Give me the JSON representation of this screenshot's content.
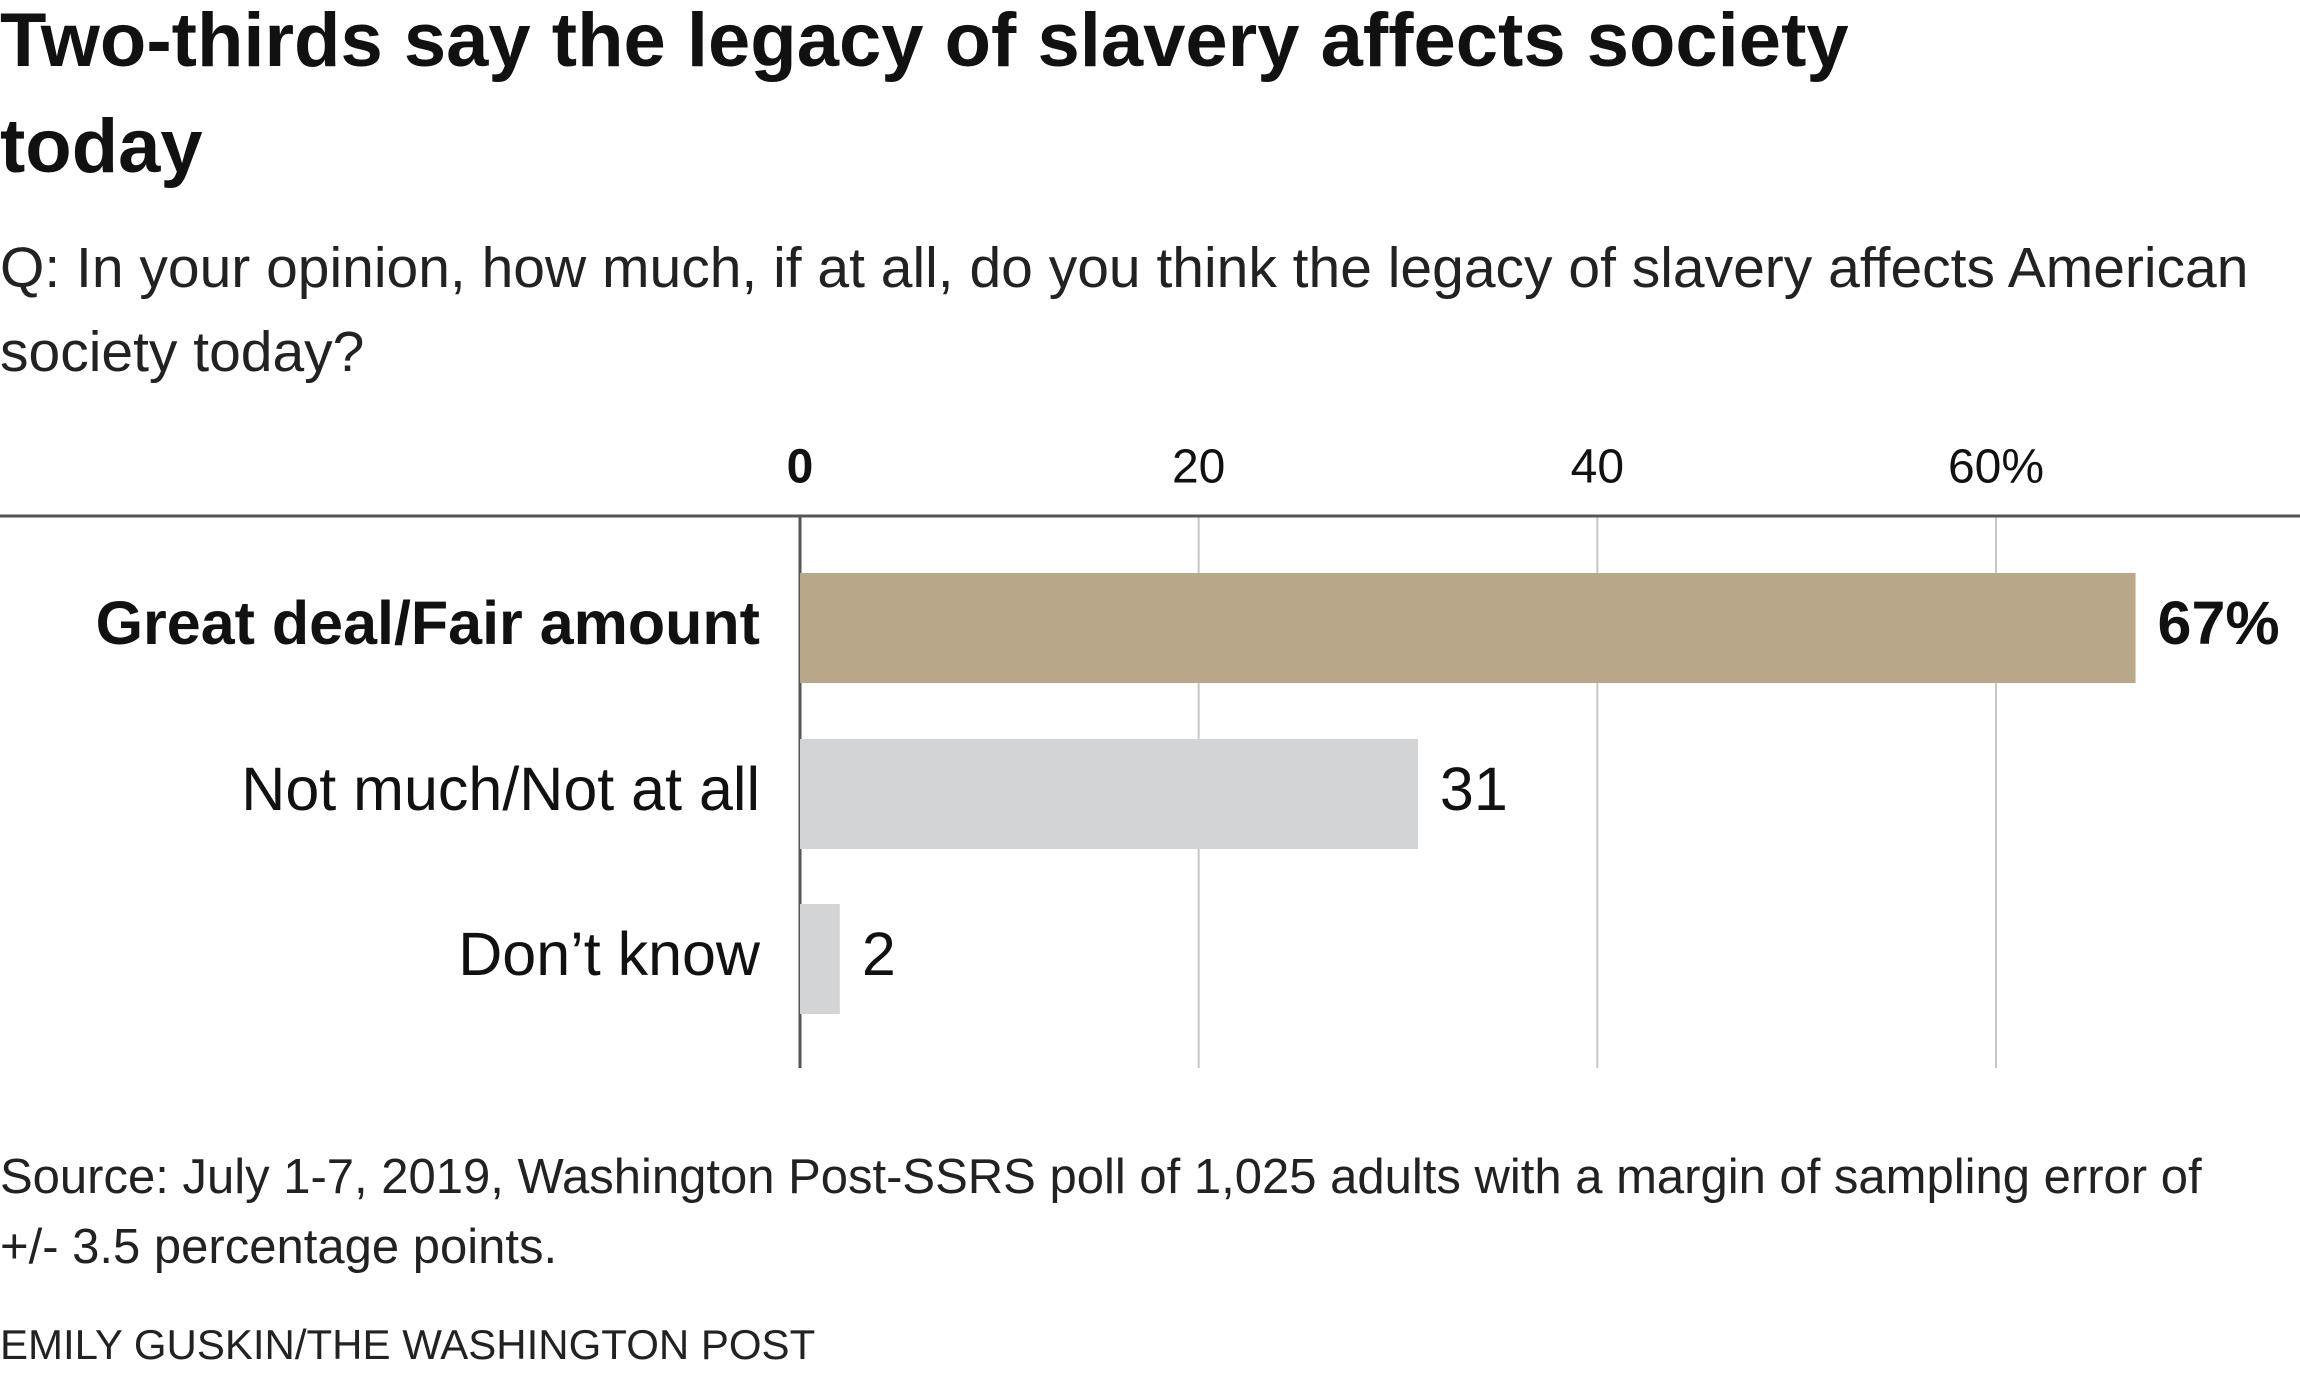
{
  "chart_data": {
    "type": "bar",
    "orientation": "horizontal",
    "title": "Two-thirds say the legacy of slavery affects society today",
    "subtitle": "Q: In your opinion, how much, if at all, do you think the legacy of slavery affects American society today?",
    "categories": [
      "Great deal/Fair amount",
      "Not much/Not at all",
      "Don’t know"
    ],
    "values": [
      67,
      31,
      2
    ],
    "value_labels": [
      "67%",
      "31",
      "2"
    ],
    "colors": [
      "#b8a889",
      "#d3d4d6",
      "#d3d4d6"
    ],
    "xlim": [
      0,
      75
    ],
    "xticks": [
      0,
      20,
      40,
      {
        "value": 60,
        "label": "60%"
      }
    ],
    "grid": true,
    "source": "Source: July 1-7, 2019, Washington Post-SSRS poll of 1,025 adults with a margin of sampling error of +/- 3.5 percentage points.",
    "credit": "EMILY GUSKIN/THE WASHINGTON POST"
  }
}
